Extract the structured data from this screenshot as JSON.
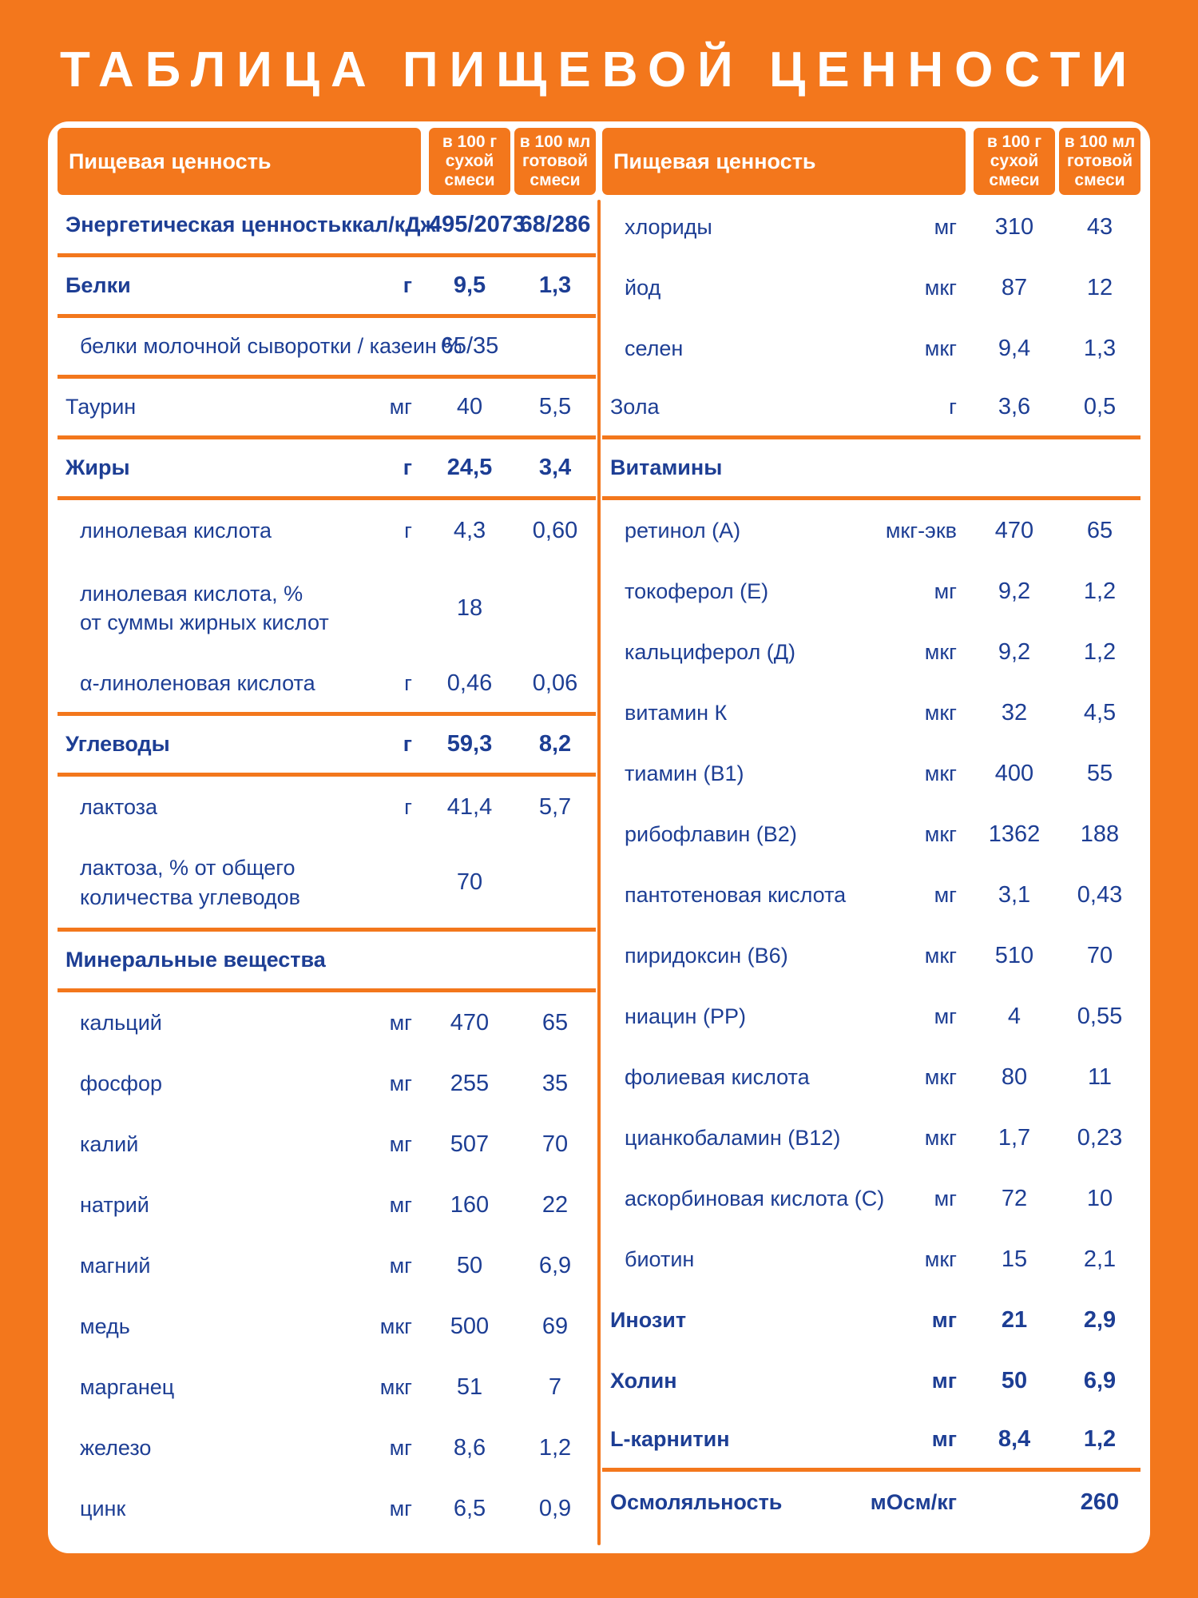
{
  "title": "ТАБЛИЦА ПИЩЕВОЙ ЦЕННОСТИ",
  "colors": {
    "background_orange": "#F3771C",
    "panel_white": "#FFFFFF",
    "text_blue": "#1D3E94",
    "header_text_white": "#FFFFFF"
  },
  "columns": {
    "label": "Пищевая ценность",
    "per_100g": "в 100 г сухой смеси",
    "per_100ml": "в 100 мл готовой смеси"
  },
  "left_table": {
    "rows": [
      {
        "label": "Энергетическая ценность",
        "unit": "ккал/кДж",
        "v1": "495/2073",
        "v2": "68/286",
        "bold": true,
        "sep": true
      },
      {
        "label": "Белки",
        "unit": "г",
        "v1": "9,5",
        "v2": "1,3",
        "bold": true,
        "sep": true
      },
      {
        "label": "белки молочной сыворотки / казеин %",
        "unit": "",
        "v1": "65/35",
        "v2": "",
        "indent": true,
        "sep": true
      },
      {
        "label": "Таурин",
        "unit": "мг",
        "v1": "40",
        "v2": "5,5",
        "sep": true
      },
      {
        "label": "Жиры",
        "unit": "г",
        "v1": "24,5",
        "v2": "3,4",
        "bold": true,
        "sep": true
      },
      {
        "label": "линолевая кислота",
        "unit": "г",
        "v1": "4,3",
        "v2": "0,60",
        "indent": true
      },
      {
        "label": "линолевая кислота, %\nот суммы жирных кислот",
        "unit": "",
        "v1": "18",
        "v2": "",
        "indent": true,
        "tall": true
      },
      {
        "label": "α-линоленовая кислота",
        "unit": "г",
        "v1": "0,46",
        "v2": "0,06",
        "indent": true,
        "sep": true
      },
      {
        "label": "Углеводы",
        "unit": "г",
        "v1": "59,3",
        "v2": "8,2",
        "bold": true,
        "sep": true
      },
      {
        "label": "лактоза",
        "unit": "г",
        "v1": "41,4",
        "v2": "5,7",
        "indent": true
      },
      {
        "label": "лактоза, % от общего\nколичества углеводов",
        "unit": "",
        "v1": "70",
        "v2": "",
        "indent": true,
        "tall": true,
        "sep": true
      },
      {
        "label": "Минеральные вещества",
        "unit": "",
        "v1": "",
        "v2": "",
        "bold": true,
        "sep": true
      },
      {
        "label": "кальций",
        "unit": "мг",
        "v1": "470",
        "v2": "65",
        "indent": true
      },
      {
        "label": "фосфор",
        "unit": "мг",
        "v1": "255",
        "v2": "35",
        "indent": true
      },
      {
        "label": "калий",
        "unit": "мг",
        "v1": "507",
        "v2": "70",
        "indent": true
      },
      {
        "label": "натрий",
        "unit": "мг",
        "v1": "160",
        "v2": "22",
        "indent": true
      },
      {
        "label": "магний",
        "unit": "мг",
        "v1": "50",
        "v2": "6,9",
        "indent": true
      },
      {
        "label": "медь",
        "unit": "мкг",
        "v1": "500",
        "v2": "69",
        "indent": true
      },
      {
        "label": "марганец",
        "unit": "мкг",
        "v1": "51",
        "v2": "7",
        "indent": true
      },
      {
        "label": "железо",
        "unit": "мг",
        "v1": "8,6",
        "v2": "1,2",
        "indent": true
      },
      {
        "label": "цинк",
        "unit": "мг",
        "v1": "6,5",
        "v2": "0,9",
        "indent": true
      }
    ]
  },
  "right_table": {
    "rows": [
      {
        "label": "хлориды",
        "unit": "мг",
        "v1": "310",
        "v2": "43",
        "indent": true
      },
      {
        "label": "йод",
        "unit": "мкг",
        "v1": "87",
        "v2": "12",
        "indent": true
      },
      {
        "label": "селен",
        "unit": "мкг",
        "v1": "9,4",
        "v2": "1,3",
        "indent": true
      },
      {
        "label": "Зола",
        "unit": "г",
        "v1": "3,6",
        "v2": "0,5",
        "sep": true
      },
      {
        "label": "Витамины",
        "unit": "",
        "v1": "",
        "v2": "",
        "bold": true,
        "sep": true
      },
      {
        "label": "ретинол (А)",
        "unit": "мкг-экв",
        "v1": "470",
        "v2": "65",
        "indent": true
      },
      {
        "label": "токоферол (Е)",
        "unit": "мг",
        "v1": "9,2",
        "v2": "1,2",
        "indent": true
      },
      {
        "label": "кальциферол (Д)",
        "unit": "мкг",
        "v1": "9,2",
        "v2": "1,2",
        "indent": true
      },
      {
        "label": "витамин К",
        "unit": "мкг",
        "v1": "32",
        "v2": "4,5",
        "indent": true
      },
      {
        "label": "тиамин (В1)",
        "unit": "мкг",
        "v1": "400",
        "v2": "55",
        "indent": true
      },
      {
        "label": "рибофлавин (В2)",
        "unit": "мкг",
        "v1": "1362",
        "v2": "188",
        "indent": true
      },
      {
        "label": "пантотеновая кислота",
        "unit": "мг",
        "v1": "3,1",
        "v2": "0,43",
        "indent": true
      },
      {
        "label": "пиридоксин (В6)",
        "unit": "мкг",
        "v1": "510",
        "v2": "70",
        "indent": true
      },
      {
        "label": "ниацин (РР)",
        "unit": "мг",
        "v1": "4",
        "v2": "0,55",
        "indent": true
      },
      {
        "label": "фолиевая кислота",
        "unit": "мкг",
        "v1": "80",
        "v2": "11",
        "indent": true
      },
      {
        "label": "цианкобаламин (В12)",
        "unit": "мкг",
        "v1": "1,7",
        "v2": "0,23",
        "indent": true
      },
      {
        "label": "аскорбиновая кислота (С)",
        "unit": "мг",
        "v1": "72",
        "v2": "10",
        "indent": true
      },
      {
        "label": "биотин",
        "unit": "мкг",
        "v1": "15",
        "v2": "2,1",
        "indent": true
      },
      {
        "label": "Инозит",
        "unit": "мг",
        "v1": "21",
        "v2": "2,9",
        "bold": true
      },
      {
        "label": "Холин",
        "unit": "мг",
        "v1": "50",
        "v2": "6,9",
        "bold": true
      },
      {
        "label": "L-карнитин",
        "unit": "мг",
        "v1": "8,4",
        "v2": "1,2",
        "bold": true,
        "sep": true
      },
      {
        "label": "Осмоляльность",
        "unit": "мОсм/кг",
        "v1": "",
        "v2": "260",
        "bold": true
      }
    ]
  }
}
